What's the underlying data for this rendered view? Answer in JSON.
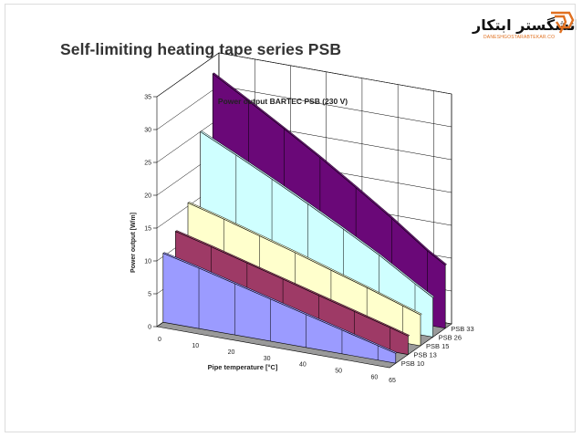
{
  "slide": {
    "title": "Self-limiting heating tape series PSB"
  },
  "logo": {
    "main_text": "دانشگستر ابتکار",
    "sub_text": "DANESHGOSTARABTEKAR.CO"
  },
  "colors": {
    "PSB 10": "#9b9bff",
    "PSB 13": "#9e3a66",
    "PSB 15": "#ffffcc",
    "PSB 26": "#cfffff",
    "PSB 33": "#6a0878",
    "floor": "#9a9a9a",
    "walls": "#ffffff",
    "grid": "#000000"
  },
  "chart_data": {
    "type": "area",
    "style": "3d-ribbon",
    "title": "Power output BARTEC PSB (230 V)",
    "xlabel": "Pipe temperature [°C]",
    "ylabel": "Power output [W/m]",
    "ylim": [
      0,
      35
    ],
    "yticks": [
      "0",
      "5",
      "10",
      "15",
      "20",
      "25",
      "30",
      "35"
    ],
    "categories": [
      0,
      10,
      20,
      30,
      40,
      50,
      60,
      65
    ],
    "xticks": [
      "0",
      "10",
      "20",
      "30",
      "40",
      "50",
      "60",
      "65"
    ],
    "grid": true,
    "legend": "series labels along depth axis, right",
    "series": [
      {
        "name": "PSB 10",
        "values": [
          10.5,
          9.2,
          7.8,
          6.4,
          5.0,
          3.6,
          2.2,
          1.5
        ]
      },
      {
        "name": "PSB 13",
        "values": [
          12.5,
          11.1,
          9.6,
          8.1,
          6.6,
          5.1,
          3.6,
          2.8
        ]
      },
      {
        "name": "PSB 15",
        "values": [
          15.5,
          14.0,
          12.4,
          10.8,
          9.1,
          7.4,
          5.6,
          4.7
        ]
      },
      {
        "name": "PSB 26",
        "values": [
          25.0,
          22.4,
          19.7,
          16.9,
          14.0,
          11.0,
          7.6,
          6.0
        ]
      },
      {
        "name": "PSB 33",
        "values": [
          32.5,
          29.3,
          26.0,
          22.6,
          19.0,
          15.3,
          11.3,
          9.6
        ]
      }
    ]
  }
}
